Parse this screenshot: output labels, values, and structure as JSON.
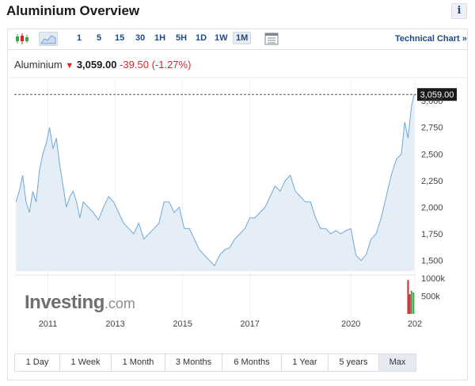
{
  "page": {
    "title": "Aluminium Overview",
    "info_label": "i"
  },
  "toolbar": {
    "periods": [
      "1",
      "5",
      "15",
      "30",
      "1H",
      "5H",
      "1D",
      "1W",
      "1M"
    ],
    "active_period": "1M",
    "technical_chart_label": "Technical Chart »"
  },
  "quote": {
    "name": "Aluminium",
    "price": "3,059.00",
    "change": "-39.50",
    "change_pct": "(-1.27%)"
  },
  "price_label": "3,059.00",
  "volume_labels": [
    "1000k",
    "500k"
  ],
  "watermark": {
    "main": "Investing",
    "suffix": ".com"
  },
  "time_ranges": [
    "1 Day",
    "1 Week",
    "1 Month",
    "3 Months",
    "6 Months",
    "1 Year",
    "5 years",
    "Max"
  ],
  "active_range": "Max",
  "colors": {
    "line": "#6fa8d6",
    "area": "#e5eef7",
    "down": "#d9262b",
    "up": "#3fa34d",
    "link": "#1e4b88"
  },
  "chart_data": {
    "type": "area",
    "x_ticks": [
      "2011",
      "2013",
      "2015",
      "2017",
      "2020",
      "202"
    ],
    "y_ticks": [
      "3,000",
      "2,750",
      "2,500",
      "2,250",
      "2,000",
      "1,750",
      "1,500"
    ],
    "ylim": [
      1400,
      3150
    ],
    "xlim": [
      2010.0,
      2021.9
    ],
    "current_price": 3059,
    "series": [
      {
        "x": [
          2010.05,
          2010.15,
          2010.25,
          2010.35,
          2010.45,
          2010.55,
          2010.65,
          2010.75,
          2010.85,
          2010.95,
          2011.05,
          2011.15,
          2011.25,
          2011.35,
          2011.45,
          2011.55,
          2011.65,
          2011.75,
          2011.85,
          2011.95,
          2012.05,
          2012.2,
          2012.35,
          2012.5,
          2012.65,
          2012.8,
          2012.95,
          2013.1,
          2013.25,
          2013.4,
          2013.55,
          2013.7,
          2013.85,
          2014.0,
          2014.15,
          2014.3,
          2014.45,
          2014.6,
          2014.75,
          2014.9,
          2015.05,
          2015.2,
          2015.35,
          2015.5,
          2015.65,
          2015.8,
          2015.95,
          2016.1,
          2016.25,
          2016.4,
          2016.55,
          2016.7,
          2016.85,
          2017.0,
          2017.15,
          2017.3,
          2017.45,
          2017.6,
          2017.75,
          2017.9,
          2018.05,
          2018.2,
          2018.35,
          2018.5,
          2018.65,
          2018.8,
          2018.95,
          2019.1,
          2019.25,
          2019.4,
          2019.55,
          2019.7,
          2019.85,
          2020.0,
          2020.15,
          2020.3,
          2020.45,
          2020.6,
          2020.75,
          2020.9,
          2021.05,
          2021.2,
          2021.35,
          2021.5,
          2021.6,
          2021.7,
          2021.8,
          2021.88
        ],
        "y": [
          2050,
          2150,
          2300,
          2050,
          1950,
          2150,
          2050,
          2350,
          2500,
          2600,
          2750,
          2550,
          2650,
          2400,
          2200,
          2000,
          2100,
          2150,
          2050,
          1900,
          2050,
          2000,
          1950,
          1880,
          2000,
          2100,
          2050,
          1950,
          1850,
          1800,
          1750,
          1850,
          1700,
          1750,
          1800,
          1850,
          2050,
          2050,
          1950,
          2000,
          1800,
          1800,
          1700,
          1600,
          1550,
          1500,
          1450,
          1550,
          1600,
          1620,
          1700,
          1750,
          1800,
          1900,
          1900,
          1950,
          2000,
          2100,
          2200,
          2150,
          2250,
          2300,
          2150,
          2100,
          2050,
          2050,
          1900,
          1800,
          1800,
          1750,
          1780,
          1750,
          1780,
          1800,
          1550,
          1500,
          1550,
          1700,
          1750,
          1900,
          2100,
          2300,
          2450,
          2500,
          2800,
          2650,
          2950,
          3059
        ]
      }
    ],
    "volume": [
      {
        "x": 2021.7,
        "v": 950,
        "color": "down"
      },
      {
        "x": 2021.75,
        "v": 550,
        "color": "down"
      },
      {
        "x": 2021.8,
        "v": 650,
        "color": "up"
      },
      {
        "x": 2021.86,
        "v": 600,
        "color": "up"
      }
    ]
  }
}
